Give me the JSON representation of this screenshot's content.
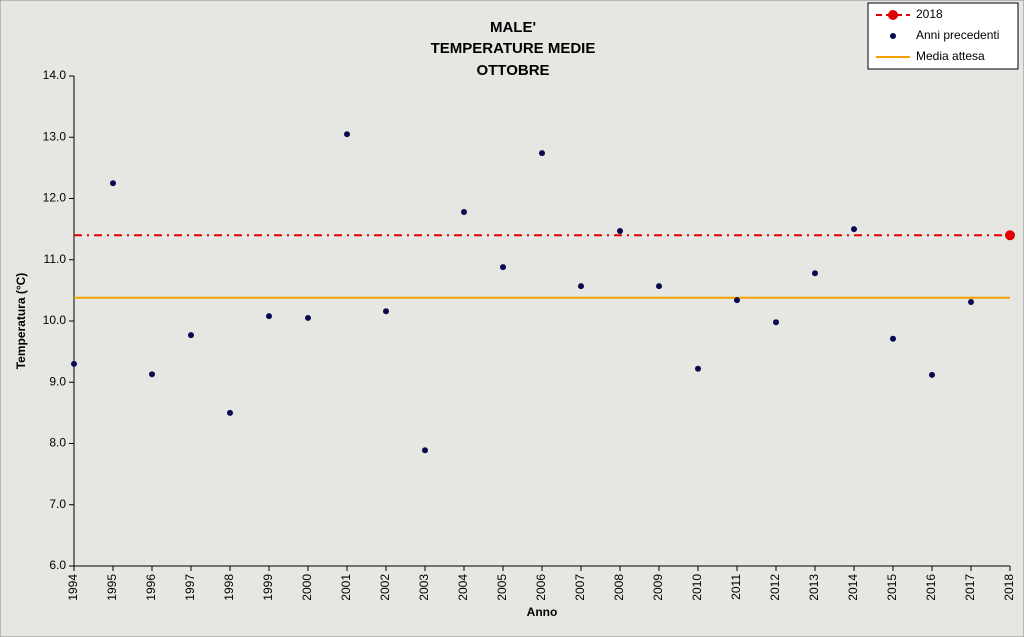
{
  "chart_data": {
    "type": "scatter",
    "title": [
      "MALE'",
      "TEMPERATURE MEDIE",
      "OTTOBRE"
    ],
    "xlabel": "Anno",
    "ylabel": "Temperatura (°C)",
    "x": [
      1994,
      1995,
      1996,
      1997,
      1998,
      1999,
      2000,
      2001,
      2002,
      2003,
      2004,
      2005,
      2006,
      2007,
      2008,
      2009,
      2010,
      2011,
      2012,
      2013,
      2014,
      2015,
      2016,
      2017,
      2018
    ],
    "xlim": [
      1994,
      2018
    ],
    "ylim": [
      6,
      14
    ],
    "yticks": [
      {
        "value": 6,
        "label": "6.0"
      },
      {
        "value": 7,
        "label": "7.0"
      },
      {
        "value": 8,
        "label": "8.0"
      },
      {
        "value": 9,
        "label": "9.0"
      },
      {
        "value": 10,
        "label": "10.0"
      },
      {
        "value": 11,
        "label": "11.0"
      },
      {
        "value": 12,
        "label": "12.0"
      },
      {
        "value": 13,
        "label": "13.0"
      },
      {
        "value": 14,
        "label": "14.0"
      }
    ],
    "series": [
      {
        "name": "2018",
        "color": "#e00000",
        "line": "dashed",
        "values": [
          null,
          null,
          null,
          null,
          null,
          null,
          null,
          null,
          null,
          null,
          null,
          null,
          null,
          null,
          null,
          null,
          null,
          null,
          null,
          null,
          null,
          null,
          null,
          null,
          11.4
        ]
      },
      {
        "name": "Anni precedenti",
        "color": "#0a0a50",
        "values": [
          9.3,
          12.25,
          9.13,
          9.77,
          8.5,
          10.08,
          10.05,
          13.05,
          10.16,
          7.89,
          11.78,
          10.88,
          12.74,
          10.57,
          11.47,
          10.57,
          9.22,
          10.34,
          9.98,
          10.78,
          11.5,
          9.71,
          9.12,
          10.31,
          null
        ]
      }
    ],
    "reference_line": {
      "name": "Media attesa",
      "color": "#f5a000",
      "value": 10.38
    },
    "legend": "top-right",
    "grid": false
  }
}
